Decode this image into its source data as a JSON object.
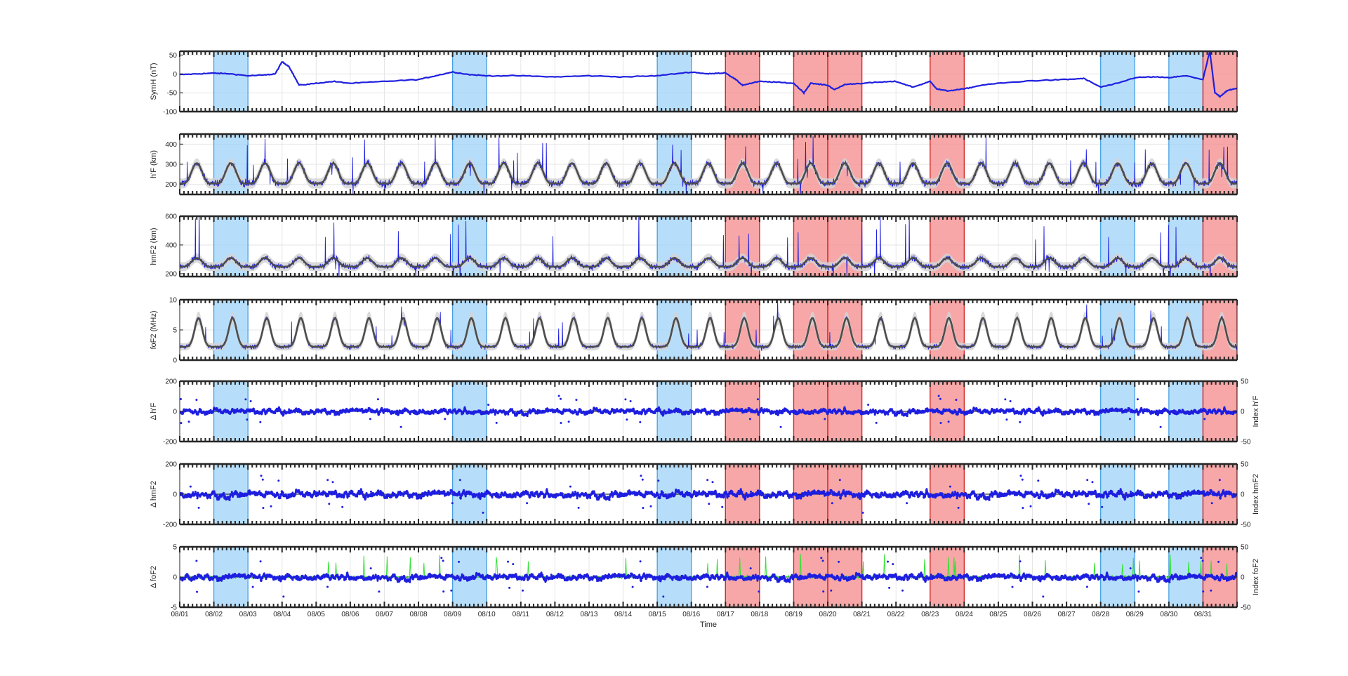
{
  "chart_data": {
    "type": "line",
    "xlabel": "Time",
    "x_tick_labels": [
      "08/01",
      "08/02",
      "08/03",
      "08/04",
      "08/05",
      "08/06",
      "08/07",
      "08/08",
      "08/09",
      "08/10",
      "08/11",
      "08/12",
      "08/13",
      "08/14",
      "08/15",
      "08/16",
      "08/17",
      "08/18",
      "08/19",
      "08/20",
      "08/21",
      "08/22",
      "08/23",
      "08/24",
      "08/25",
      "08/26",
      "08/27",
      "08/28",
      "08/29",
      "08/30",
      "08/31"
    ],
    "x_range_days": [
      1,
      32
    ],
    "grid": true,
    "quiet_days": [
      [
        2,
        3
      ],
      [
        9,
        10
      ],
      [
        15,
        16
      ],
      [
        28,
        29
      ],
      [
        30,
        31
      ]
    ],
    "storm_days": [
      [
        17,
        18
      ],
      [
        19,
        20
      ],
      [
        20,
        21
      ],
      [
        23,
        24
      ],
      [
        31,
        32
      ]
    ],
    "colors": {
      "quiet_fill": "#9ed3f8",
      "quiet_edge": "#3d9be3",
      "storm_fill": "#f48a8a",
      "storm_edge": "#d62728",
      "observation": "#1f1fe0",
      "median": "#4d4d4d",
      "band": "#d3d3d3",
      "index": "#35e035"
    },
    "panels": [
      {
        "id": "symh",
        "ylabel": "SymH (nT)",
        "yticks": [
          "50",
          "0",
          "-50",
          "-100"
        ],
        "ylim": [
          -100,
          60
        ],
        "series": [
          {
            "kind": "line",
            "x": [
              1,
              1.5,
              2,
              2.5,
              3,
              3.5,
              3.8,
              4,
              4.2,
              4.5,
              5,
              5.5,
              6,
              7,
              8,
              8.5,
              9,
              9.5,
              10,
              11,
              12,
              13,
              14,
              15,
              16,
              16.5,
              17,
              17.3,
              17.5,
              18,
              18.5,
              19,
              19.3,
              19.5,
              20,
              20.2,
              20.5,
              21,
              21.5,
              22,
              22.5,
              23,
              23.2,
              23.5,
              24,
              24.5,
              25,
              26,
              27,
              27.5,
              28,
              28.5,
              29,
              29.5,
              30,
              30.5,
              31,
              31.2,
              31.35,
              31.5,
              31.7,
              32
            ],
            "y": [
              -2,
              0,
              2,
              0,
              -5,
              -3,
              0,
              32,
              20,
              -30,
              -25,
              -20,
              -25,
              -20,
              -15,
              -5,
              5,
              -2,
              -5,
              -5,
              -8,
              -5,
              -8,
              -5,
              5,
              0,
              3,
              -15,
              -30,
              -20,
              -22,
              -25,
              -50,
              -25,
              -30,
              -42,
              -28,
              -25,
              -22,
              -20,
              -35,
              -20,
              -40,
              -45,
              -40,
              -30,
              -25,
              -18,
              -15,
              -12,
              -35,
              -25,
              -10,
              -8,
              -10,
              -5,
              -15,
              60,
              -50,
              -60,
              -45,
              -38
            ]
          }
        ]
      },
      {
        "id": "hpf",
        "ylabel": "h'F (km)",
        "yticks": [
          "400",
          "300",
          "200"
        ],
        "ylim": [
          150,
          450
        ],
        "series": [
          {
            "kind": "diurnal",
            "role": "obs",
            "base": 240,
            "amp": 50,
            "noise": 55,
            "spikes": 180
          }
        ]
      },
      {
        "id": "hmf2",
        "ylabel": "hmF2 (km)",
        "yticks": [
          "600",
          "400",
          "200"
        ],
        "ylim": [
          180,
          600
        ],
        "series": [
          {
            "kind": "diurnal",
            "role": "obs",
            "base": 270,
            "amp": 30,
            "noise": 70,
            "spikes": 350
          }
        ]
      },
      {
        "id": "fof2",
        "ylabel": "foF2 (MHz)",
        "yticks": [
          "10",
          "5",
          "0"
        ],
        "ylim": [
          0,
          10
        ],
        "series": [
          {
            "kind": "diurnal",
            "role": "obs",
            "base": 4.5,
            "amp": 2.8,
            "noise": 1.2,
            "spikes": 4
          }
        ]
      },
      {
        "id": "dhpf",
        "ylabel": "Δ h'F",
        "ylabel_right": "Index h'F",
        "yticks": [
          "200",
          "0",
          "-200"
        ],
        "yticks_right": [
          "50",
          "0",
          "-50"
        ],
        "ylim": [
          -200,
          200
        ],
        "series": [
          {
            "kind": "scatter",
            "role": "obs",
            "spread": 40,
            "spikes": 110
          }
        ]
      },
      {
        "id": "dhmf2",
        "ylabel": "Δ hmF2",
        "ylabel_right": "Index hmF2",
        "yticks": [
          "200",
          "0",
          "-200"
        ],
        "yticks_right": [
          "50",
          "0",
          "-50"
        ],
        "ylim": [
          -200,
          200
        ],
        "series": [
          {
            "kind": "scatter",
            "role": "obs",
            "spread": 50,
            "spikes": 130
          }
        ]
      },
      {
        "id": "dfof2",
        "ylabel": "Δ foF2",
        "ylabel_right": "Index foF2",
        "yticks": [
          "5",
          "0",
          "-5"
        ],
        "yticks_right": [
          "50",
          "0",
          "-50"
        ],
        "ylim": [
          -5,
          5
        ],
        "series": [
          {
            "kind": "scatter",
            "role": "obs",
            "spread": 1.1,
            "spikes": 3.5
          }
        ]
      }
    ]
  }
}
